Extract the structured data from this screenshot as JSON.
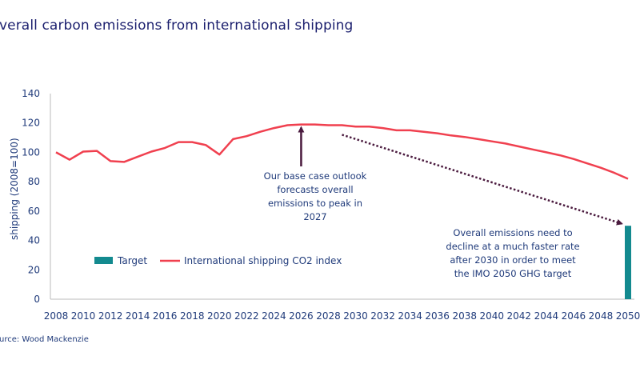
{
  "chart_data": {
    "type": "line",
    "title": "verall carbon emissions from international shipping",
    "source": "urce: Wood Mackenzie",
    "ylabel": "shipping (2008=100)",
    "xlabel": "",
    "ylim": [
      0,
      140
    ],
    "yticks": [
      "0",
      "20",
      "40",
      "60",
      "80",
      "100",
      "120",
      "140"
    ],
    "xlim": [
      2008,
      2050
    ],
    "xticks": [
      "2008",
      "2010",
      "2012",
      "2014",
      "2016",
      "2018",
      "2020",
      "2022",
      "2024",
      "2026",
      "2028",
      "2030",
      "2032",
      "2034",
      "2036",
      "2038",
      "2040",
      "2042",
      "2044",
      "2046",
      "2048",
      "2050"
    ],
    "grid": false,
    "legend_position": "bottom-left",
    "series": [
      {
        "name": "International shipping CO2 index",
        "type": "line",
        "color": "#f0404f",
        "x": [
          2008,
          2009,
          2010,
          2011,
          2012,
          2013,
          2014,
          2015,
          2016,
          2017,
          2018,
          2019,
          2020,
          2021,
          2022,
          2023,
          2024,
          2025,
          2026,
          2027,
          2028,
          2029,
          2030,
          2031,
          2032,
          2033,
          2034,
          2035,
          2036,
          2037,
          2038,
          2039,
          2040,
          2041,
          2042,
          2043,
          2044,
          2045,
          2046,
          2047,
          2048,
          2049,
          2050
        ],
        "y": [
          100,
          95,
          100.5,
          101,
          94,
          93.5,
          97,
          100.5,
          103,
          107,
          107,
          105,
          98.5,
          109,
          111,
          114,
          116.5,
          118.5,
          119,
          119,
          118.5,
          118.5,
          117.5,
          117.5,
          116.5,
          115,
          115,
          114,
          113,
          111.5,
          110.5,
          109,
          107.5,
          106,
          104,
          102,
          100,
          98,
          95.5,
          92.5,
          89.5,
          86,
          82
        ]
      },
      {
        "name": "Target",
        "type": "bar",
        "color": "#138a8f",
        "x": [
          2050
        ],
        "y": [
          50
        ]
      }
    ],
    "annotations": [
      {
        "lines": [
          "Our base case outlook",
          "forecasts overall",
          "emissions to peak in",
          "2027"
        ],
        "arrow_to": {
          "x": 2026,
          "y": 119
        }
      },
      {
        "lines": [
          "Overall emissions need to",
          "decline at a much faster rate",
          "after 2030 in order to meet",
          "the IMO 2050 GHG target"
        ],
        "arrow_from": {
          "x": 2029,
          "y": 112
        },
        "arrow_to": {
          "x": 2050,
          "y": 52
        }
      }
    ],
    "annotation_color": "#4a1a3e"
  }
}
